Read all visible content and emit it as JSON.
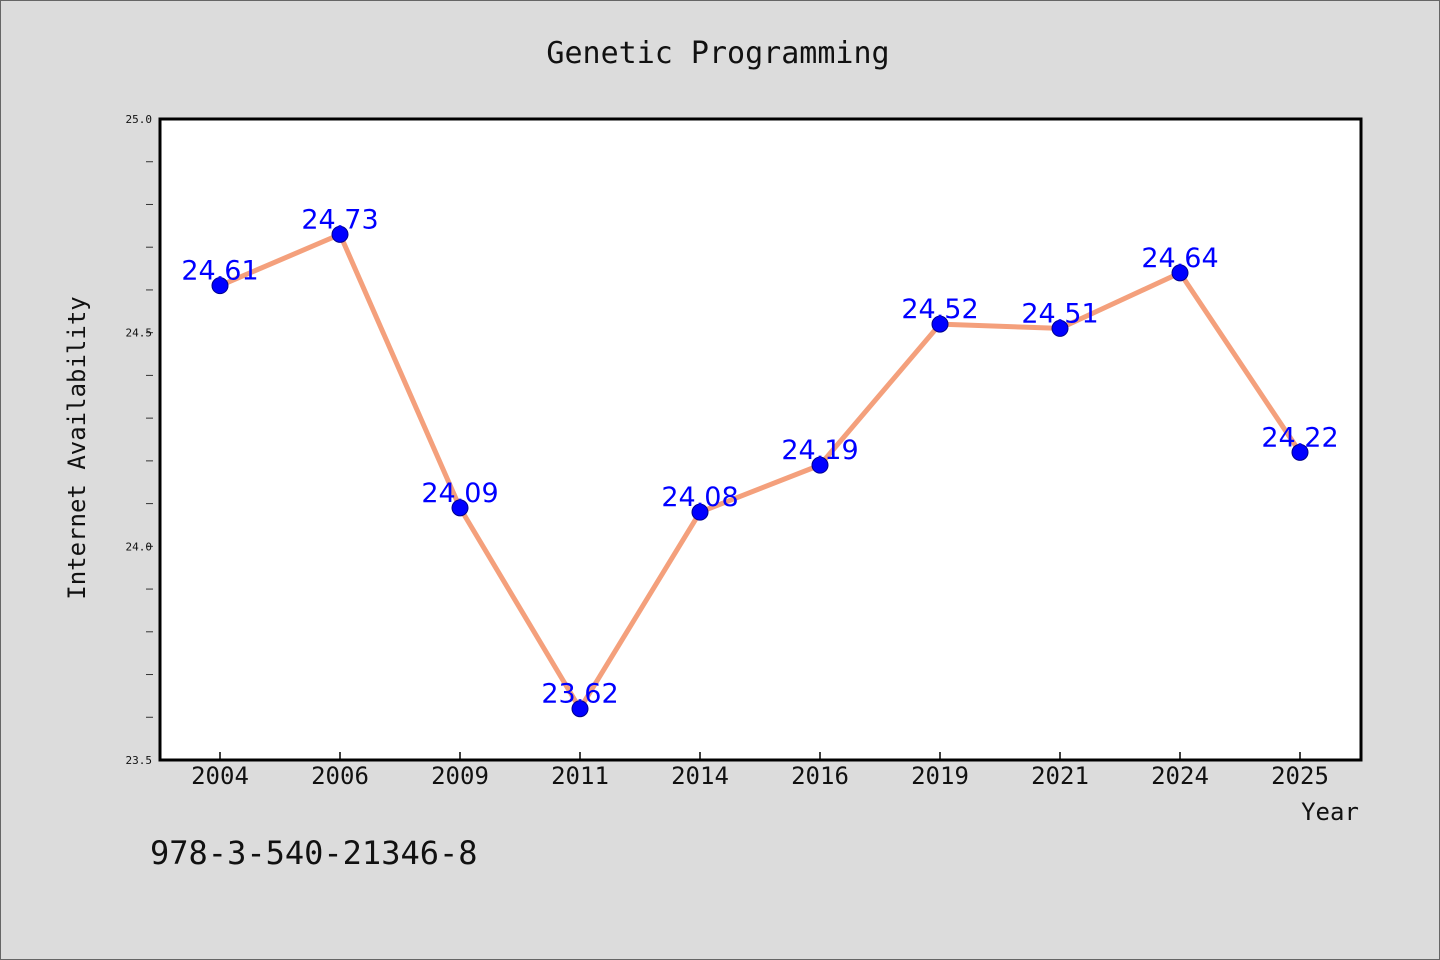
{
  "chart_data": {
    "type": "line",
    "title": "Genetic Programming",
    "xlabel": "Year",
    "ylabel": "Internet Availability",
    "categories": [
      "2004",
      "2006",
      "2009",
      "2011",
      "2014",
      "2016",
      "2019",
      "2021",
      "2024",
      "2025"
    ],
    "values": [
      24.61,
      24.73,
      24.09,
      23.62,
      24.08,
      24.19,
      24.52,
      24.51,
      24.64,
      24.22
    ],
    "data_labels": [
      "24.61",
      "24.73",
      "24.09",
      "23.62",
      "24.08",
      "24.19",
      "24.52",
      "24.51",
      "24.64",
      "24.22"
    ],
    "ylim": [
      23.5,
      25.0
    ],
    "yticks": [
      "23.5",
      "24.0",
      "24.5",
      "25.0"
    ],
    "line_color": "#f4a07c",
    "marker_color": "#0000ff",
    "label_color": "#0000ff",
    "grid": false,
    "legend": "none"
  },
  "footer_text": "978-3-540-21346-8"
}
